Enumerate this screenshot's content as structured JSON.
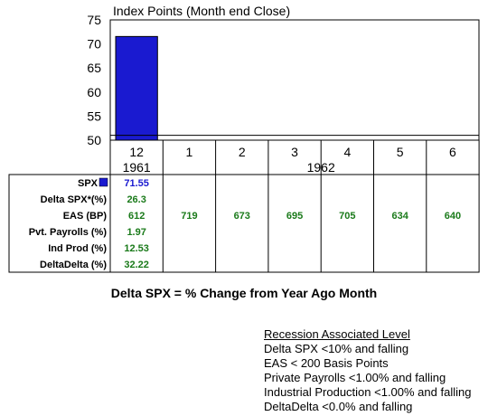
{
  "chart_data": {
    "type": "bar",
    "title": "Index Points (Month end Close)",
    "categories": [
      "12",
      "1",
      "2",
      "3",
      "4",
      "5",
      "6"
    ],
    "year_groups": [
      {
        "label": "1961",
        "start": 0,
        "end": 0
      },
      {
        "label": "1962",
        "start": 1,
        "end": 6
      }
    ],
    "series": [
      {
        "name": "SPX",
        "values": [
          71.55,
          null,
          null,
          null,
          null,
          null,
          null
        ]
      }
    ],
    "ylim": [
      50,
      75
    ],
    "yticks": [
      50,
      55,
      60,
      65,
      70,
      75
    ],
    "bar_color": "#1a1ad0",
    "reference_line": 51,
    "xlabel": "",
    "ylabel": ""
  },
  "table": {
    "rows": [
      {
        "label": "SPX",
        "has_swatch": true,
        "color": "#1a1ad0",
        "values": [
          "71.55",
          "",
          "",
          "",
          "",
          "",
          ""
        ]
      },
      {
        "label": "Delta SPX*(%)",
        "color": "#1a7a1a",
        "values": [
          "26.3",
          "",
          "",
          "",
          "",
          "",
          ""
        ]
      },
      {
        "label": "EAS (BP)",
        "color": "#1a7a1a",
        "values": [
          "612",
          "719",
          "673",
          "695",
          "705",
          "634",
          "640"
        ]
      },
      {
        "label": "Pvt. Payrolls (%)",
        "color": "#1a7a1a",
        "values": [
          "1.97",
          "",
          "",
          "",
          "",
          "",
          ""
        ]
      },
      {
        "label": "Ind Prod (%)",
        "color": "#1a7a1a",
        "values": [
          "12.53",
          "",
          "",
          "",
          "",
          "",
          ""
        ]
      },
      {
        "label": "DeltaDelta (%)",
        "color": "#1a7a1a",
        "values": [
          "32.22",
          "",
          "",
          "",
          "",
          "",
          ""
        ]
      }
    ]
  },
  "caption": "Delta SPX = % Change from Year Ago Month",
  "recession": {
    "heading": "Recession Associated Level",
    "items": [
      "Delta SPX <10% and falling",
      "EAS < 200 Basis Points",
      "Private Payrolls <1.00% and falling",
      "Industrial Production <1.00% and falling",
      "DeltaDelta <0.0% and falling"
    ]
  }
}
